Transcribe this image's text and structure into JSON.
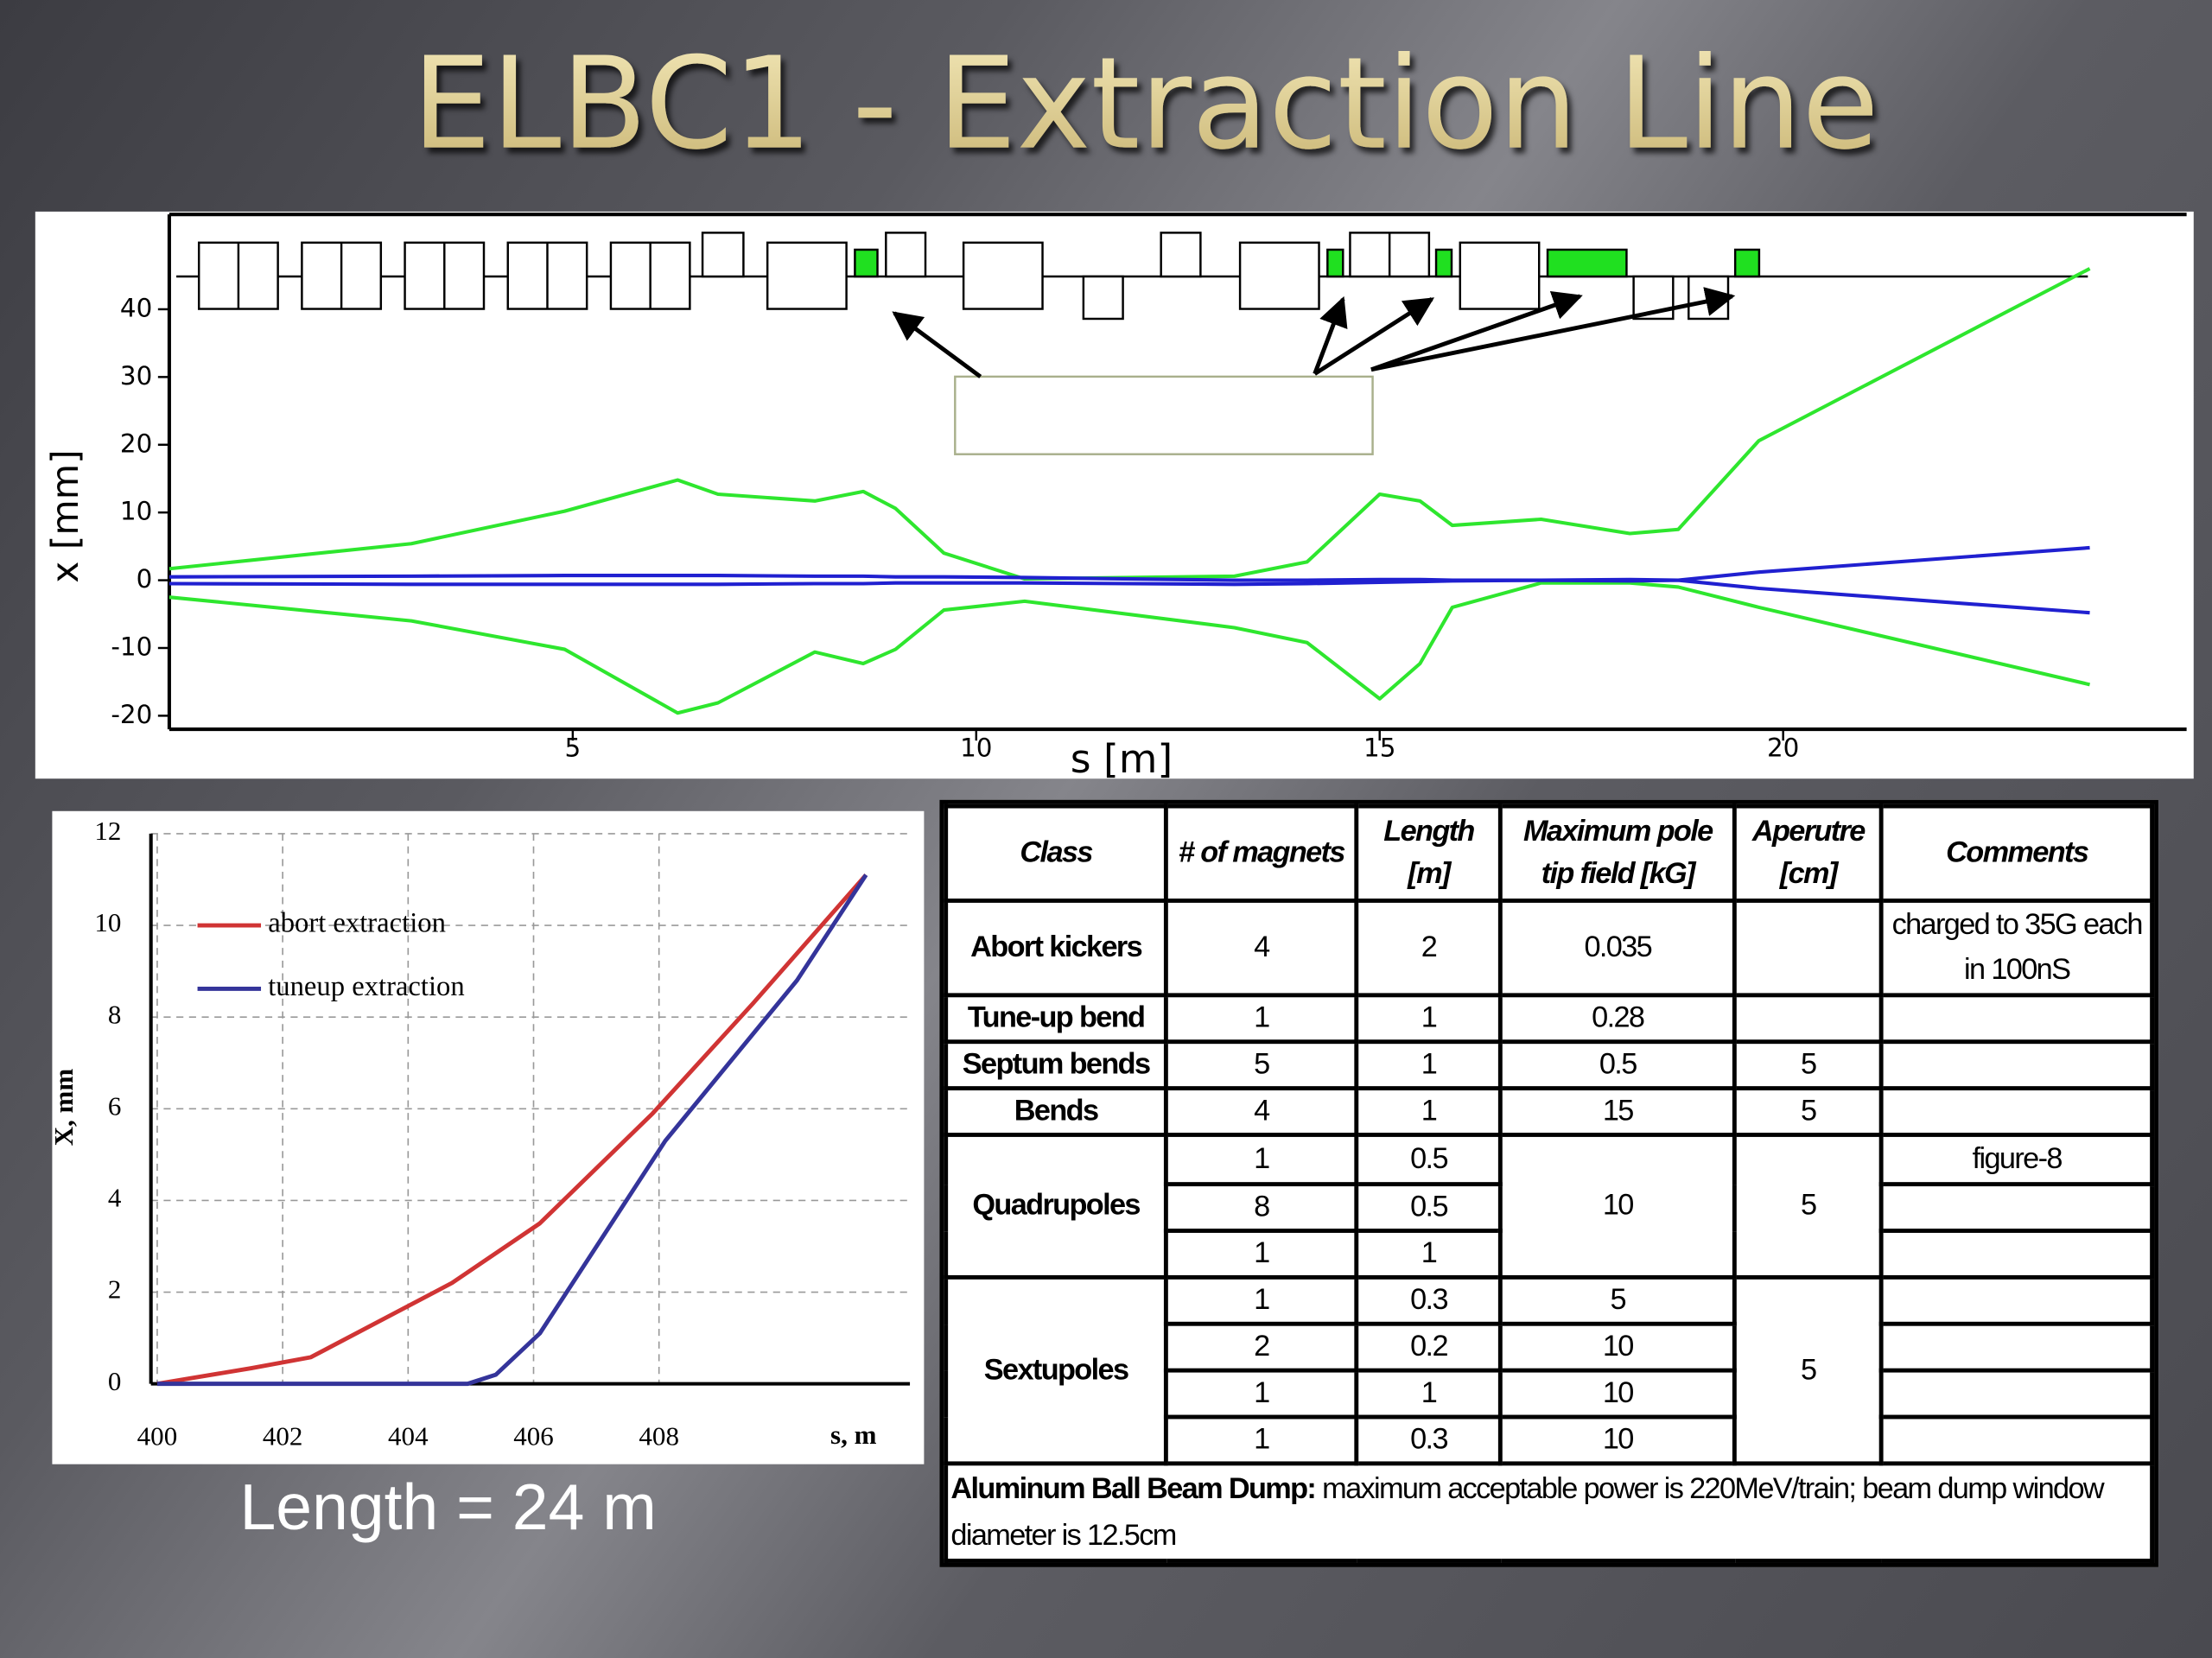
{
  "title": "ELBC1 - Extraction Line",
  "caption": "Length = 24 m",
  "chart_data": [
    {
      "type": "line",
      "x_label": "s [m]",
      "y_label": "x [mm]",
      "x": [
        0,
        3,
        4.9,
        6.3,
        6.8,
        8,
        8.6,
        9,
        9.6,
        10.6,
        13.2,
        14.1,
        15,
        15.5,
        15.9,
        17,
        18.1,
        18.7,
        19.7,
        23.8
      ],
      "series": [
        {
          "color": "#2ee62e",
          "values": [
            1.7,
            5.4,
            10.2,
            14.8,
            12.7,
            11.7,
            13.1,
            10.6,
            4,
            0.2,
            0.6,
            2.7,
            12.7,
            11.7,
            8.1,
            9,
            6.9,
            7.5,
            20.6,
            46
          ]
        },
        {
          "color": "#2ee62e",
          "values": [
            -2.5,
            -6,
            -10.2,
            -19.6,
            -18.1,
            -10.6,
            -12.3,
            -10.2,
            -4.4,
            -3.1,
            -7,
            -9.2,
            -17.5,
            -12.3,
            -4,
            -0.4,
            -0.4,
            -1,
            -4,
            -15.4
          ]
        },
        {
          "color": "#2020d0",
          "values": [
            0.5,
            0.6,
            0.7,
            0.7,
            0.7,
            0.6,
            0.6,
            0.5,
            0.5,
            0.4,
            0,
            0,
            0.1,
            0.1,
            0,
            0,
            -0.1,
            0,
            1.2,
            4.8
          ]
        },
        {
          "color": "#2020d0",
          "values": [
            -0.5,
            -0.6,
            -0.6,
            -0.6,
            -0.6,
            -0.5,
            -0.5,
            -0.4,
            -0.4,
            -0.4,
            -0.6,
            -0.5,
            -0.3,
            -0.2,
            -0.1,
            0,
            0.1,
            0,
            -1.2,
            -4.8
          ]
        }
      ],
      "xlim": [
        0,
        25
      ],
      "ylim": [
        -22,
        54
      ],
      "xticks": [
        5,
        10,
        15,
        20
      ],
      "yticks": [
        -20,
        -10,
        0,
        10,
        20,
        30,
        40
      ],
      "grid": false
    },
    {
      "type": "line",
      "x_label": "s, m",
      "y_label": "X, mm",
      "series": [
        {
          "name": "abort extraction",
          "color": "#d03434",
          "x": [
            400,
            401.5,
            402.45,
            404.7,
            406.1,
            407.9,
            409.5,
            411.3
          ],
          "values": [
            0,
            0.34,
            0.58,
            2.2,
            3.5,
            5.9,
            8.3,
            11.1
          ]
        },
        {
          "name": "tuneup extraction",
          "color": "#34349a",
          "x": [
            400,
            404.95,
            405.4,
            406.1,
            408.1,
            410.2,
            411.3
          ],
          "values": [
            0,
            0,
            0.2,
            1.1,
            5.3,
            8.8,
            11.1
          ]
        }
      ],
      "xlim": [
        399.9,
        412
      ],
      "ylim": [
        0,
        12
      ],
      "xticks": [
        400,
        402,
        404,
        406,
        408
      ],
      "yticks": [
        0,
        2,
        4,
        6,
        8,
        10,
        12
      ],
      "grid": true,
      "legend": "upper left"
    }
  ],
  "table": {
    "header": [
      "Class",
      "# of magnets",
      "Length [m]",
      "Maximum pole tip field [kG]",
      "Aperutre [cm]",
      "Comments"
    ],
    "groups": [
      {
        "class": "Abort kickers",
        "items": [
          {
            "magnets": "4",
            "length": "2",
            "field": "0.035",
            "comments": "charged to 35G each in 100nS"
          }
        ]
      },
      {
        "class": "Tune-up bend",
        "items": [
          {
            "magnets": "1",
            "length": "1",
            "field": "0.28"
          }
        ]
      },
      {
        "class": "Septum bends",
        "items": [
          {
            "magnets": "5",
            "length": "1",
            "field": "0.5",
            "aperture": "5"
          }
        ]
      },
      {
        "class": "Bends",
        "items": [
          {
            "magnets": "4",
            "length": "1",
            "field": "15",
            "aperture": "5"
          }
        ]
      },
      {
        "class": "Quadrupoles",
        "field": "10",
        "aperture": "5",
        "items": [
          {
            "magnets": "1",
            "length": "0.5",
            "comments": "figure-8"
          },
          {
            "magnets": "8",
            "length": "0.5"
          },
          {
            "magnets": "1",
            "length": "1"
          }
        ]
      },
      {
        "class": "Sextupoles",
        "aperture": "5",
        "items": [
          {
            "magnets": "1",
            "length": "0.3",
            "field": "5"
          },
          {
            "magnets": "2",
            "length": "0.2",
            "field": "10"
          },
          {
            "magnets": "1",
            "length": "1",
            "field": "10"
          },
          {
            "magnets": "1",
            "length": "0.3",
            "field": "10"
          }
        ]
      }
    ],
    "footer": {
      "bold": "Aluminum Ball Beam Dump:",
      "text": "maximum acceptable power is 220MeV/train; beam dump window diameter is 12.5cm"
    }
  }
}
